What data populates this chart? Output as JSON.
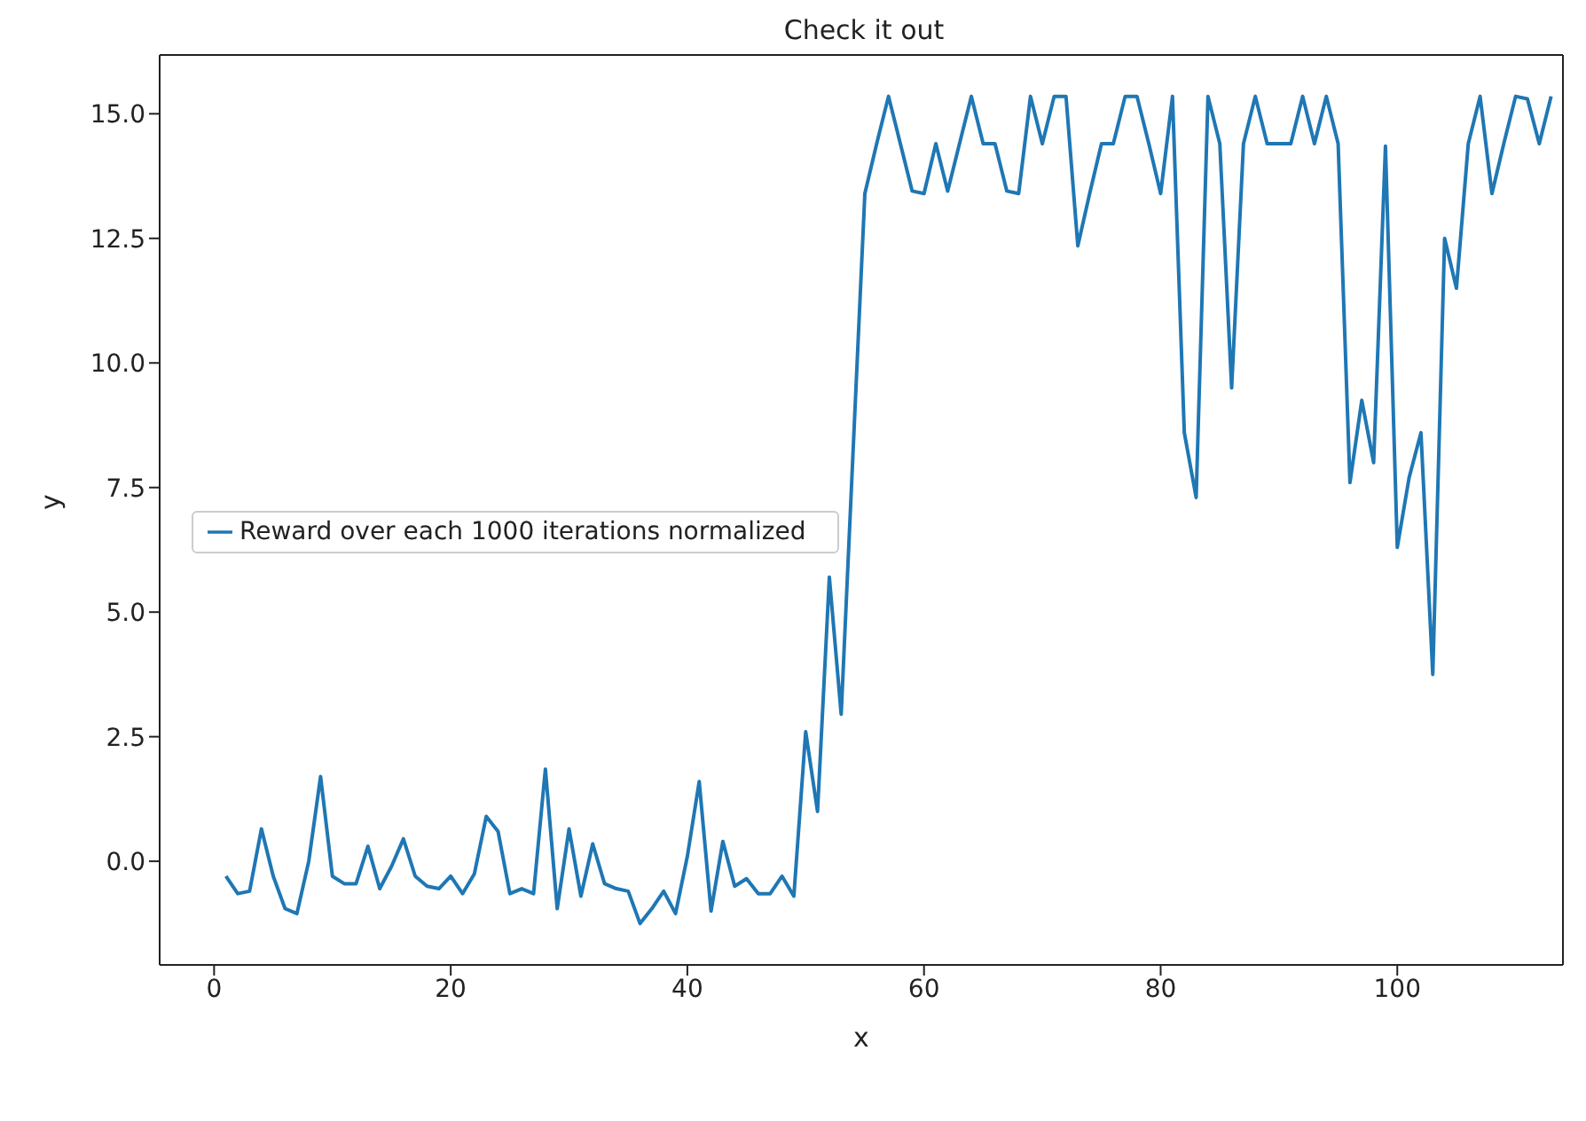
{
  "chart_data": {
    "type": "line",
    "title": "Check it out",
    "xlabel": "x",
    "ylabel": "y",
    "x": [
      1,
      2,
      3,
      4,
      5,
      6,
      7,
      8,
      9,
      10,
      11,
      12,
      13,
      14,
      15,
      16,
      17,
      18,
      19,
      20,
      21,
      22,
      23,
      24,
      25,
      26,
      27,
      28,
      29,
      30,
      31,
      32,
      33,
      34,
      35,
      36,
      37,
      38,
      39,
      40,
      41,
      42,
      43,
      44,
      45,
      46,
      47,
      48,
      49,
      50,
      51,
      52,
      53,
      54,
      55,
      56,
      57,
      58,
      59,
      60,
      61,
      62,
      63,
      64,
      65,
      66,
      67,
      68,
      69,
      70,
      71,
      72,
      73,
      74,
      75,
      76,
      77,
      78,
      79,
      80,
      81,
      82,
      83,
      84,
      85,
      86,
      87,
      88,
      89,
      90,
      91,
      92,
      93,
      94,
      95,
      96,
      97,
      98,
      99,
      100,
      101,
      102,
      103,
      104,
      105,
      106,
      107,
      108,
      109,
      110,
      111,
      112,
      113
    ],
    "series": [
      {
        "name": "Reward over each 1000 iterations normalized",
        "color": "#1f77b4",
        "values": [
          -0.3,
          -0.65,
          -0.6,
          0.65,
          -0.3,
          -0.95,
          -1.05,
          0.0,
          1.7,
          -0.3,
          -0.45,
          -0.45,
          0.3,
          -0.55,
          -0.1,
          0.45,
          -0.3,
          -0.5,
          -0.55,
          -0.3,
          -0.65,
          -0.25,
          0.9,
          0.6,
          -0.65,
          -0.55,
          -0.65,
          1.85,
          -0.95,
          0.65,
          -0.7,
          0.35,
          -0.45,
          -0.55,
          -0.6,
          -1.25,
          -0.95,
          -0.6,
          -1.05,
          0.1,
          1.6,
          -1.0,
          0.4,
          -0.5,
          -0.35,
          -0.65,
          -0.65,
          -0.3,
          -0.7,
          2.6,
          1.0,
          5.7,
          2.95,
          8.2,
          13.4,
          14.4,
          15.35,
          14.4,
          13.45,
          13.4,
          14.4,
          13.45,
          14.4,
          15.35,
          14.4,
          14.4,
          13.45,
          13.4,
          15.35,
          14.4,
          15.35,
          15.35,
          12.35,
          13.4,
          14.4,
          14.4,
          15.35,
          15.35,
          14.4,
          13.4,
          15.35,
          8.6,
          7.3,
          15.35,
          14.4,
          9.5,
          14.4,
          15.35,
          14.4,
          14.4,
          14.4,
          15.35,
          14.4,
          15.35,
          14.4,
          7.6,
          9.25,
          8.0,
          14.35,
          6.3,
          7.7,
          8.6,
          3.75,
          12.5,
          11.5,
          14.4,
          15.35,
          13.4,
          14.4,
          15.35,
          15.3,
          14.4,
          15.35
        ]
      }
    ],
    "xlim": [
      -4.6,
      114
    ],
    "xticks": [
      0,
      20,
      40,
      60,
      80,
      100
    ],
    "ylim": [
      -2.08,
      16.18
    ],
    "yticks": [
      {
        "value": 0,
        "label": "0.0"
      },
      {
        "value": 2.5,
        "label": "2.5"
      },
      {
        "value": 5,
        "label": "5.0"
      },
      {
        "value": 7.5,
        "label": "7.5"
      },
      {
        "value": 10,
        "label": "10.0"
      },
      {
        "value": 12.5,
        "label": "12.5"
      },
      {
        "value": 15,
        "label": "15.0"
      }
    ],
    "grid": false,
    "legend": "left",
    "marker": "none",
    "line_style": "solid"
  }
}
